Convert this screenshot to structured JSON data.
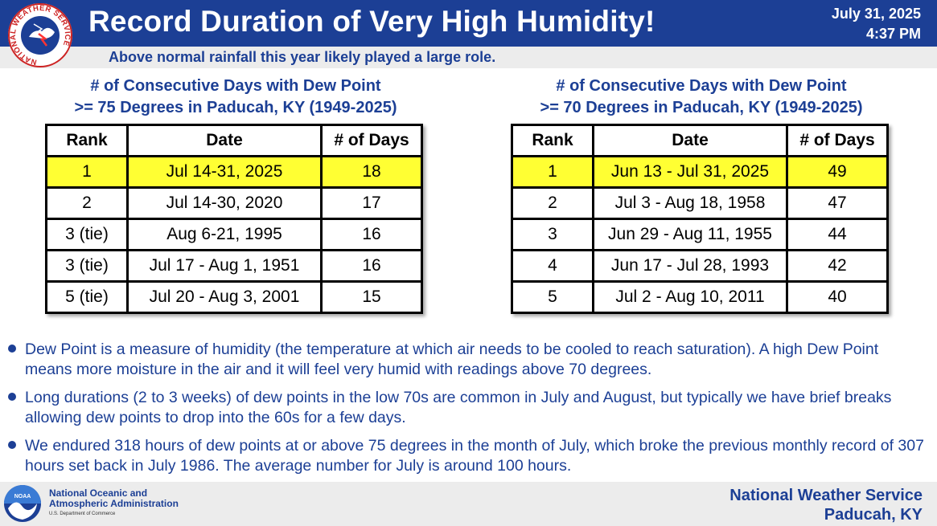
{
  "header": {
    "title": "Record Duration of Very High Humidity!",
    "date": "July 31, 2025",
    "time": "4:37 PM",
    "logo_text": "NATIONAL WEATHER SERVICE"
  },
  "subtitle": "Above normal rainfall this year likely played a large role.",
  "table_left": {
    "title_line1": "# of Consecutive Days with Dew Point",
    "title_line2": ">= 75 Degrees in Paducah, KY (1949-2025)",
    "headers": [
      "Rank",
      "Date",
      "# of Days"
    ],
    "rows": [
      [
        "1",
        "Jul 14-31, 2025",
        "18"
      ],
      [
        "2",
        "Jul 14-30, 2020",
        "17"
      ],
      [
        "3 (tie)",
        "Aug 6-21, 1995",
        "16"
      ],
      [
        "3 (tie)",
        "Jul 17 - Aug 1, 1951",
        "16"
      ],
      [
        "5 (tie)",
        "Jul 20 - Aug 3, 2001",
        "15"
      ]
    ]
  },
  "table_right": {
    "title_line1": "# of Consecutive Days with Dew Point",
    "title_line2": ">= 70 Degrees in Paducah, KY (1949-2025)",
    "headers": [
      "Rank",
      "Date",
      "# of Days"
    ],
    "rows": [
      [
        "1",
        "Jun 13 - Jul 31, 2025",
        "49"
      ],
      [
        "2",
        "Jul 3 - Aug 18, 1958",
        "47"
      ],
      [
        "3",
        "Jun 29 - Aug 11, 1955",
        "44"
      ],
      [
        "4",
        "Jun 17 - Jul 28, 1993",
        "42"
      ],
      [
        "5",
        "Jul 2 - Aug 10, 2011",
        "40"
      ]
    ]
  },
  "bullets": [
    "Dew Point is a measure of humidity (the temperature at which air needs to be cooled to reach saturation). A high Dew Point means more moisture in the air and it will feel very humid with readings above 70 degrees.",
    "Long durations (2 to 3 weeks) of dew points in the low 70s are common in July and August, but typically we have brief breaks allowing dew points to drop into the 60s for a few days.",
    "We endured 318 hours of dew points at or above 75 degrees in the month of July, which broke the previous monthly record of 307 hours set back in July 1986. The average number for July is around 100 hours."
  ],
  "footer": {
    "noaa_line1": "National Oceanic and",
    "noaa_line2": "Atmospheric Administration",
    "noaa_dept": "U.S. Department of Commerce",
    "noaa_logo_text": "NOAA",
    "nws_line1": "National Weather Service",
    "nws_line2": "Paducah, KY"
  },
  "colors": {
    "brand_blue": "#1c3f95",
    "highlight_yellow": "#ffff33",
    "band_gray": "#ececec"
  },
  "icons": {
    "nws": "nws-logo-icon",
    "noaa": "noaa-logo-icon",
    "bullet": "bullet-dot-icon"
  }
}
